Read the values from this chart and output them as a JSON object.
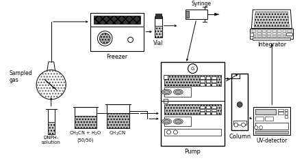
{
  "bg_color": "#ffffff",
  "components": {
    "sampled_gas_label": "Sampled\ngas",
    "dnph_label": "DNPH-\nsolution",
    "ch3cn_h2o_label": "CH$_3$CN + H$_2$O\n(50/50)",
    "ch3cn_label": "CH$_3$CN",
    "freezer_label": "Freezer",
    "vial_label": "Vial",
    "syringe_label": "Syringe",
    "pump_label": "Pump",
    "column_label": "Column",
    "uv_label": "UV-detector",
    "integrator_label": "Integrator"
  }
}
